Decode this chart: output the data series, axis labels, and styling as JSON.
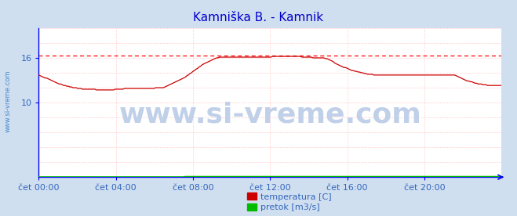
{
  "title": "Kamniška B. - Kamnik",
  "title_color": "#0000cc",
  "title_fontsize": 11,
  "bg_color": "#d0dff0",
  "plot_bg_color": "#ffffff",
  "x_ticks_labels": [
    "čet 00:00",
    "čet 04:00",
    "čet 08:00",
    "čet 12:00",
    "čet 16:00",
    "čet 20:00"
  ],
  "x_ticks_pos": [
    0,
    48,
    96,
    144,
    192,
    240
  ],
  "x_max": 288,
  "y_min": 0,
  "y_max": 20,
  "y_ticks_show": [
    10,
    16
  ],
  "grid_color": "#ffaaaa",
  "grid_color_x": "#ffaaaa",
  "axis_color": "#0000ff",
  "watermark": "www.si-vreme.com",
  "watermark_color": "#c0d0e8",
  "watermark_fontsize": 26,
  "side_label": "www.si-vreme.com",
  "side_label_color": "#4488cc",
  "legend_items": [
    "temperatura [C]",
    "pretok [m3/s]"
  ],
  "legend_colors": [
    "#cc0000",
    "#00bb00"
  ],
  "dashed_line_y": 16.3,
  "dashed_line_color": "#ff0000",
  "temperatura": [
    13.7,
    13.6,
    13.5,
    13.4,
    13.3,
    13.3,
    13.2,
    13.1,
    13.0,
    12.9,
    12.8,
    12.7,
    12.6,
    12.5,
    12.5,
    12.4,
    12.3,
    12.3,
    12.2,
    12.2,
    12.1,
    12.1,
    12.0,
    12.0,
    12.0,
    11.9,
    11.9,
    11.9,
    11.8,
    11.8,
    11.8,
    11.8,
    11.8,
    11.8,
    11.8,
    11.8,
    11.8,
    11.7,
    11.7,
    11.7,
    11.7,
    11.7,
    11.7,
    11.7,
    11.7,
    11.7,
    11.7,
    11.7,
    11.7,
    11.8,
    11.8,
    11.8,
    11.8,
    11.8,
    11.8,
    11.9,
    11.9,
    11.9,
    11.9,
    11.9,
    11.9,
    11.9,
    11.9,
    11.9,
    11.9,
    11.9,
    11.9,
    11.9,
    11.9,
    11.9,
    11.9,
    11.9,
    11.9,
    11.9,
    11.9,
    12.0,
    12.0,
    12.0,
    12.0,
    12.0,
    12.0,
    12.1,
    12.2,
    12.3,
    12.4,
    12.5,
    12.6,
    12.7,
    12.8,
    12.9,
    13.0,
    13.1,
    13.2,
    13.3,
    13.4,
    13.6,
    13.7,
    13.9,
    14.0,
    14.2,
    14.3,
    14.5,
    14.6,
    14.8,
    14.9,
    15.1,
    15.2,
    15.3,
    15.4,
    15.5,
    15.6,
    15.7,
    15.8,
    15.9,
    16.0,
    16.0,
    16.1,
    16.1,
    16.1,
    16.1,
    16.1,
    16.1,
    16.1,
    16.1,
    16.1,
    16.1,
    16.1,
    16.1,
    16.1,
    16.1,
    16.1,
    16.1,
    16.1,
    16.1,
    16.1,
    16.1,
    16.1,
    16.1,
    16.1,
    16.1,
    16.1,
    16.1,
    16.1,
    16.1,
    16.1,
    16.1,
    16.1,
    16.1,
    16.1,
    16.1,
    16.2,
    16.2,
    16.2,
    16.2,
    16.2,
    16.2,
    16.2,
    16.2,
    16.2,
    16.2,
    16.2,
    16.2,
    16.2,
    16.2,
    16.2,
    16.2,
    16.2,
    16.2,
    16.2,
    16.1,
    16.1,
    16.1,
    16.1,
    16.1,
    16.1,
    16.1,
    16.0,
    16.0,
    16.0,
    16.0,
    16.0,
    16.0,
    16.0,
    16.0,
    15.9,
    15.9,
    15.8,
    15.7,
    15.6,
    15.5,
    15.3,
    15.2,
    15.1,
    15.0,
    14.9,
    14.8,
    14.7,
    14.7,
    14.6,
    14.5,
    14.4,
    14.3,
    14.3,
    14.2,
    14.2,
    14.1,
    14.1,
    14.0,
    14.0,
    13.9,
    13.9,
    13.8,
    13.8,
    13.8,
    13.8,
    13.7,
    13.7,
    13.7,
    13.7,
    13.7,
    13.7,
    13.7,
    13.7,
    13.7,
    13.7,
    13.7,
    13.7,
    13.7,
    13.7,
    13.7,
    13.7,
    13.7,
    13.7,
    13.7,
    13.7,
    13.7,
    13.7,
    13.7,
    13.7,
    13.7,
    13.7,
    13.7,
    13.7,
    13.7,
    13.7,
    13.7,
    13.7,
    13.7,
    13.7,
    13.7,
    13.7,
    13.7,
    13.7,
    13.7,
    13.7,
    13.7,
    13.7,
    13.7,
    13.7,
    13.7,
    13.7,
    13.7,
    13.7,
    13.7,
    13.7,
    13.7,
    13.7,
    13.7,
    13.6,
    13.5,
    13.4,
    13.3,
    13.2,
    13.1,
    13.0,
    12.9,
    12.9,
    12.8,
    12.8,
    12.7,
    12.6,
    12.6,
    12.5,
    12.5,
    12.5,
    12.4,
    12.4,
    12.4,
    12.3,
    12.3,
    12.3,
    12.3,
    12.3,
    12.3,
    12.3,
    12.3,
    12.3,
    12.3
  ],
  "pretok": [
    0.05,
    0.05,
    0.05,
    0.05,
    0.05,
    0.05,
    0.05,
    0.05,
    0.05,
    0.05,
    0.05,
    0.05,
    0.05,
    0.05,
    0.05,
    0.05,
    0.05,
    0.05,
    0.05,
    0.05,
    0.05,
    0.05,
    0.05,
    0.05,
    0.05,
    0.05,
    0.05,
    0.05,
    0.05,
    0.05,
    0.05,
    0.05,
    0.05,
    0.05,
    0.05,
    0.05,
    0.05,
    0.05,
    0.05,
    0.05,
    0.05,
    0.05,
    0.05,
    0.05,
    0.05,
    0.05,
    0.05,
    0.05,
    0.05,
    0.05,
    0.05,
    0.05,
    0.05,
    0.05,
    0.05,
    0.05,
    0.05,
    0.05,
    0.05,
    0.05,
    0.05,
    0.05,
    0.05,
    0.05,
    0.05,
    0.05,
    0.05,
    0.05,
    0.05,
    0.05,
    0.05,
    0.05,
    0.05,
    0.05,
    0.05,
    0.05,
    0.05,
    0.05,
    0.05,
    0.05,
    0.05,
    0.05,
    0.05,
    0.05,
    0.05,
    0.05,
    0.05,
    0.05,
    0.05,
    0.05,
    0.05,
    0.05,
    0.05,
    0.05,
    0.1,
    0.1,
    0.1,
    0.1,
    0.1,
    0.1,
    0.1,
    0.1,
    0.1,
    0.1,
    0.1,
    0.1,
    0.1,
    0.1,
    0.1,
    0.1,
    0.1,
    0.1,
    0.1,
    0.1,
    0.1,
    0.1,
    0.1,
    0.1,
    0.1,
    0.1,
    0.1,
    0.1,
    0.1,
    0.1,
    0.1,
    0.1,
    0.1,
    0.1,
    0.1,
    0.1,
    0.1,
    0.1,
    0.1,
    0.1,
    0.1,
    0.1,
    0.1,
    0.1,
    0.1,
    0.1,
    0.1,
    0.1,
    0.1,
    0.1,
    0.1,
    0.1,
    0.1,
    0.1,
    0.1,
    0.1,
    0.1,
    0.1,
    0.1,
    0.1,
    0.1,
    0.1,
    0.1,
    0.1,
    0.1,
    0.1,
    0.1,
    0.1,
    0.1,
    0.1,
    0.1,
    0.1,
    0.1,
    0.1,
    0.1,
    0.1,
    0.1,
    0.1,
    0.1,
    0.1,
    0.1,
    0.1,
    0.1,
    0.1,
    0.1,
    0.1,
    0.1,
    0.1,
    0.1,
    0.1,
    0.1,
    0.1,
    0.1,
    0.1,
    0.1,
    0.1,
    0.1,
    0.1,
    0.1,
    0.1,
    0.1,
    0.1,
    0.1,
    0.1,
    0.1,
    0.1,
    0.1,
    0.1,
    0.1,
    0.1,
    0.1,
    0.1,
    0.1,
    0.1,
    0.1,
    0.1,
    0.1,
    0.1,
    0.1,
    0.1,
    0.1,
    0.1,
    0.1,
    0.1,
    0.1,
    0.1,
    0.1,
    0.1,
    0.1,
    0.1,
    0.1,
    0.1,
    0.1,
    0.1,
    0.1,
    0.1,
    0.1,
    0.1,
    0.1,
    0.1,
    0.1,
    0.1,
    0.1,
    0.1,
    0.1,
    0.1,
    0.1,
    0.1,
    0.1,
    0.1,
    0.1,
    0.1,
    0.1,
    0.1,
    0.1,
    0.1,
    0.1,
    0.1,
    0.1,
    0.1,
    0.1,
    0.1,
    0.1,
    0.1,
    0.1,
    0.1,
    0.1,
    0.1,
    0.1,
    0.1,
    0.1,
    0.1,
    0.1,
    0.1,
    0.1,
    0.1,
    0.1,
    0.1,
    0.1,
    0.1,
    0.1,
    0.1,
    0.1,
    0.1,
    0.1,
    0.1,
    0.1,
    0.1,
    0.1,
    0.1,
    0.1,
    0.1,
    0.1,
    0.1,
    0.1,
    0.1,
    0.1,
    0.1,
    0.1,
    0.1,
    0.1,
    0.1,
    0.1,
    0.1
  ]
}
